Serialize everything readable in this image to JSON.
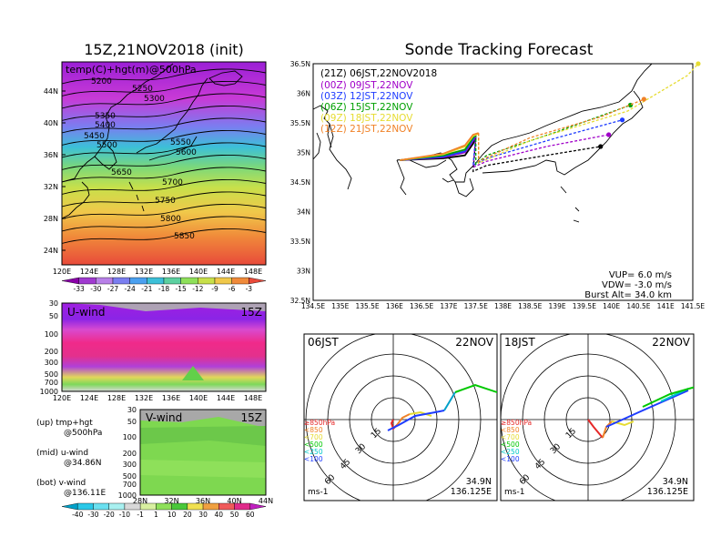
{
  "left_title": "15Z,21NOV2018 (init)",
  "right_title": "Sonde Tracking Forecast",
  "map500": {
    "label": "temp(C)+hgt(m)@500hPa",
    "lat_ticks": [
      "44N",
      "40N",
      "36N",
      "32N",
      "28N",
      "24N"
    ],
    "lon_ticks": [
      "120E",
      "124E",
      "128E",
      "132E",
      "136E",
      "140E",
      "144E",
      "148E"
    ],
    "contours": [
      "5200",
      "5250",
      "5300",
      "5350",
      "5400",
      "5450",
      "5500",
      "5550",
      "5600",
      "5650",
      "5700",
      "5750",
      "5800",
      "5850"
    ],
    "colorbar": [
      "-33",
      "-30",
      "-27",
      "-24",
      "-21",
      "-18",
      "-15",
      "-12",
      "-9",
      "-6",
      "-3"
    ]
  },
  "uwind": {
    "label": "U-wind",
    "time": "15Z",
    "levels": [
      "30",
      "50",
      "100",
      "200",
      "300",
      "500",
      "700",
      "1000"
    ],
    "lon_ticks": [
      "120E",
      "124E",
      "128E",
      "132E",
      "136E",
      "140E",
      "144E",
      "148E"
    ]
  },
  "vwind": {
    "label": "V-wind",
    "time": "15Z",
    "levels": [
      "30",
      "50",
      "100",
      "200",
      "300",
      "500",
      "700",
      "1000"
    ],
    "lat_ticks": [
      "28N",
      "32N",
      "36N",
      "40N",
      "44N"
    ]
  },
  "legend_notes": [
    {
      "title": "(up) tmp+hgt",
      "sub": "@500hPa"
    },
    {
      "title": "(mid) u-wind",
      "sub": "@34.86N"
    },
    {
      "title": "(bot) v-wind",
      "sub": "@136.11E"
    }
  ],
  "wind_colorbar": [
    "-40",
    "-30",
    "-20",
    "-10",
    "-1",
    "1",
    "10",
    "20",
    "30",
    "40",
    "50",
    "60"
  ],
  "track": {
    "entries": [
      {
        "text": "(21Z) 06JST,22NOV2018",
        "color": "#000000"
      },
      {
        "text": "(00Z) 09JST,22NOV",
        "color": "#a000c8"
      },
      {
        "text": "(03Z) 12JST,22NOV",
        "color": "#1e3cff"
      },
      {
        "text": "(06Z) 15JST,22NOV",
        "color": "#00a000"
      },
      {
        "text": "(09Z) 18JST,22NOV",
        "color": "#e6dc32"
      },
      {
        "text": "(12Z) 21JST,22NOV",
        "color": "#f08228"
      }
    ],
    "lat_ticks": [
      "36.5N",
      "36N",
      "35.5N",
      "35N",
      "34.5N",
      "34N",
      "33.5N",
      "33N",
      "32.5N"
    ],
    "lon_ticks": [
      "134.5E",
      "135E",
      "135.5E",
      "136E",
      "136.5E",
      "137E",
      "137.5E",
      "138E",
      "138.5E",
      "139E",
      "139.5E",
      "140E",
      "140.5E",
      "141E",
      "141.5E"
    ],
    "params": [
      "VUP=  6.0  m/s",
      "VDW= -3.0  m/s",
      "Burst Alt= 34.0  km"
    ]
  },
  "hodo1": {
    "time": "06JST",
    "date": "22NOV",
    "lat": "34.9N",
    "lon": "136.125E",
    "unit": "ms-1",
    "rings": [
      "15",
      "30",
      "45",
      "60"
    ]
  },
  "hodo2": {
    "time": "18JST",
    "date": "22NOV",
    "lat": "34.9N",
    "lon": "136.125E",
    "unit": "ms-1",
    "rings": [
      "15",
      "30",
      "45",
      "60"
    ]
  },
  "hodo_levels": [
    {
      "text": "≥850hPa",
      "color": "#e62828"
    },
    {
      "text": "<850",
      "color": "#f08228"
    },
    {
      "text": "<700",
      "color": "#e6dc32"
    },
    {
      "text": "<500",
      "color": "#00c800"
    },
    {
      "text": "<250",
      "color": "#00c8c8"
    },
    {
      "text": "<100",
      "color": "#1e3cff"
    }
  ],
  "chart_data": [
    {
      "type": "heatmap",
      "title": "15Z,21NOV2018 (init)",
      "label": "temp(C)+hgt(m)@500hPa",
      "xlim": [
        120,
        150
      ],
      "ylim": [
        22,
        48
      ],
      "contour_levels": [
        5200,
        5250,
        5300,
        5350,
        5400,
        5450,
        5500,
        5550,
        5600,
        5650,
        5700,
        5750,
        5800,
        5850
      ],
      "colorbar": [
        -33,
        -30,
        -27,
        -24,
        -21,
        -18,
        -15,
        -12,
        -9,
        -6,
        -3
      ]
    },
    {
      "type": "heatmap",
      "label": "U-wind",
      "time": "15Z",
      "xlim": [
        120,
        150
      ],
      "levels_hPa": [
        30,
        50,
        100,
        200,
        300,
        500,
        700,
        1000
      ]
    },
    {
      "type": "heatmap",
      "label": "V-wind",
      "time": "15Z",
      "xlim": [
        28,
        44
      ],
      "levels_hPa": [
        30,
        50,
        100,
        200,
        300,
        500,
        700,
        1000
      ],
      "colorbar": [
        -40,
        -30,
        -20,
        -10,
        -1,
        1,
        10,
        20,
        30,
        40,
        50,
        60
      ]
    },
    {
      "type": "line",
      "title": "Sonde Tracking Forecast",
      "xlim": [
        134.5,
        141.5
      ],
      "ylim": [
        32.5,
        36.5
      ],
      "series": [
        {
          "name": "(21Z) 06JST,22NOV2018",
          "x": [
            136.1,
            136.9,
            137.3,
            137.45,
            137.5,
            137.45,
            137.7,
            138.8,
            139.8
          ],
          "y": [
            34.87,
            34.9,
            34.95,
            35.15,
            35.25,
            34.68,
            34.78,
            34.95,
            35.1
          ]
        },
        {
          "name": "(00Z) 09JST,22NOV",
          "x": [
            136.1,
            136.9,
            137.3,
            137.45,
            137.5,
            137.45,
            137.7,
            138.8,
            139.95
          ],
          "y": [
            34.87,
            34.92,
            35.0,
            35.2,
            35.28,
            34.75,
            34.85,
            35.1,
            35.3
          ]
        },
        {
          "name": "(03Z) 12JST,22NOV",
          "x": [
            136.1,
            136.9,
            137.3,
            137.45,
            137.5,
            137.45,
            137.7,
            139.0,
            140.2
          ],
          "y": [
            34.87,
            34.93,
            35.02,
            35.22,
            35.3,
            34.78,
            34.9,
            35.25,
            35.55
          ]
        },
        {
          "name": "(06Z) 15JST,22NOV",
          "x": [
            136.1,
            136.9,
            137.3,
            137.45,
            137.5,
            137.5,
            137.7,
            139.0,
            140.35
          ],
          "y": [
            34.87,
            34.95,
            35.05,
            35.25,
            35.3,
            34.8,
            34.95,
            35.35,
            35.8
          ]
        },
        {
          "name": "(09Z) 18JST,22NOV",
          "x": [
            136.1,
            136.9,
            137.3,
            137.45,
            137.55,
            137.55,
            138.5,
            140.3,
            141.4,
            141.6
          ],
          "y": [
            34.87,
            34.97,
            35.1,
            35.28,
            35.32,
            34.82,
            35.2,
            35.7,
            36.3,
            36.5
          ]
        },
        {
          "name": "(12Z) 21JST,22NOV",
          "x": [
            136.1,
            136.9,
            137.3,
            137.45,
            137.55,
            137.55,
            138.5,
            139.8,
            140.6
          ],
          "y": [
            34.87,
            34.98,
            35.12,
            35.3,
            35.33,
            34.85,
            35.25,
            35.6,
            35.9
          ]
        }
      ],
      "params": {
        "VUP_m_s": 6.0,
        "VDW_m_s": -3.0,
        "burst_alt_km": 34.0
      }
    },
    {
      "type": "scatter",
      "title": "06JST 22NOV hodograph",
      "unit": "ms-1",
      "rings": [
        15,
        30,
        45,
        60
      ]
    },
    {
      "type": "scatter",
      "title": "18JST 22NOV hodograph",
      "unit": "ms-1",
      "rings": [
        15,
        30,
        45,
        60
      ]
    }
  ]
}
